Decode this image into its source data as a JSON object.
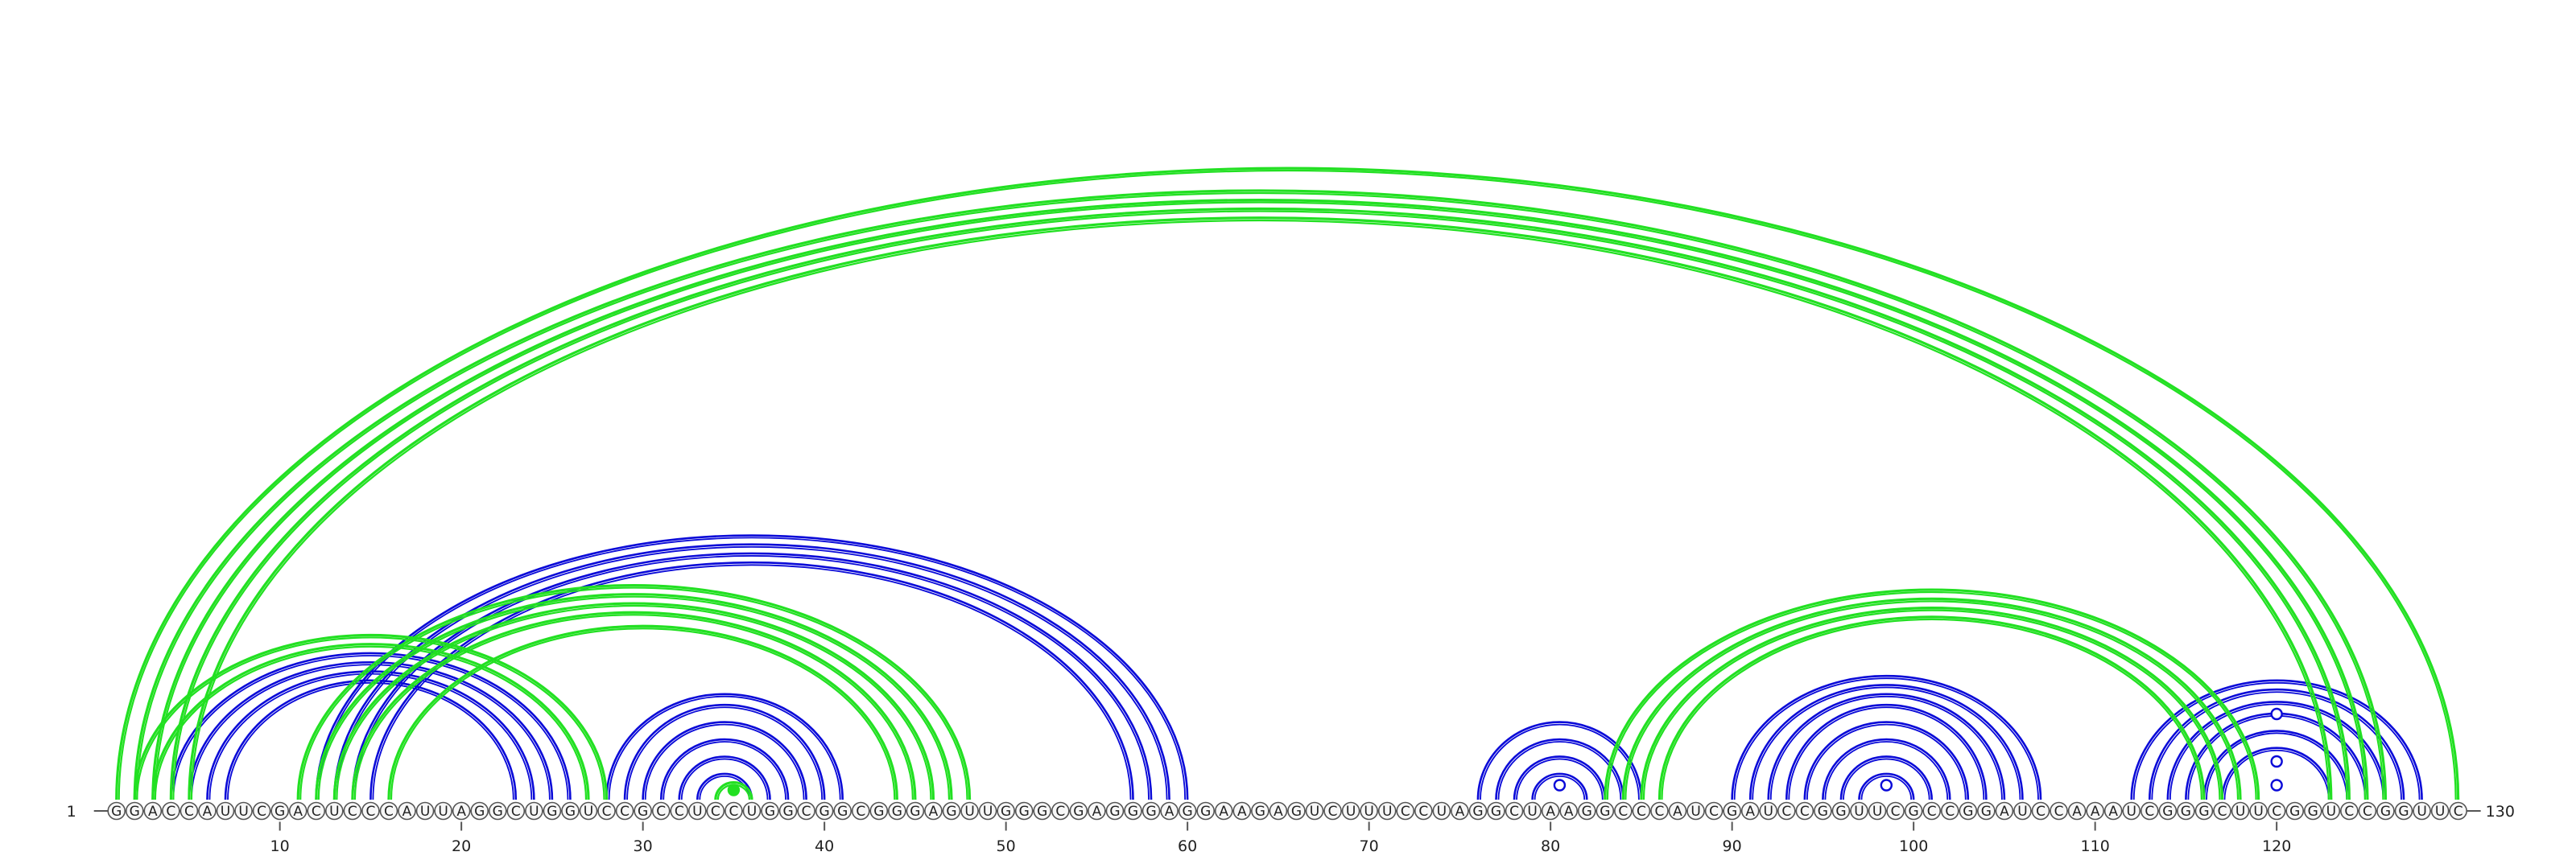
{
  "sequence": "GGACCAUUCGACUCCCAUUAGGCUGGUCCGCCUCCUGGCGGCGGGAGUUGGGCGAGGGAGGAAGAGUCUUUCCUAGGCUAAGGCCCAUCGAUCCGGUUCGCCGGAUCCAAAUCGGGCUUCGGUCCGGUUC",
  "start_label": "1",
  "end_label": "130",
  "axis_ticks": [
    {
      "pos": 10,
      "label": "10"
    },
    {
      "pos": 20,
      "label": "20"
    },
    {
      "pos": 30,
      "label": "30"
    },
    {
      "pos": 40,
      "label": "40"
    },
    {
      "pos": 50,
      "label": "50"
    },
    {
      "pos": 60,
      "label": "60"
    },
    {
      "pos": 70,
      "label": "70"
    },
    {
      "pos": 80,
      "label": "80"
    },
    {
      "pos": 90,
      "label": "90"
    },
    {
      "pos": 100,
      "label": "100"
    },
    {
      "pos": 110,
      "label": "110"
    },
    {
      "pos": 120,
      "label": "120"
    }
  ],
  "colors": {
    "blue": "#0a0ad8",
    "green": "#22e022",
    "backbone": "#555555"
  },
  "arc_groups": [
    {
      "name": "blue-helix-a",
      "color": "blue",
      "pairs": [
        [
          4,
          26
        ],
        [
          5,
          25
        ],
        [
          6,
          24
        ],
        [
          7,
          23
        ]
      ]
    },
    {
      "name": "blue-helix-b",
      "color": "blue",
      "pairs": [
        [
          12,
          60
        ],
        [
          13,
          59
        ],
        [
          14,
          58
        ],
        [
          15,
          57
        ]
      ]
    },
    {
      "name": "blue-hairpin-33",
      "color": "blue",
      "pairs": [
        [
          28,
          41
        ],
        [
          29,
          40
        ],
        [
          30,
          39
        ],
        [
          31,
          38
        ],
        [
          32,
          37
        ],
        [
          33,
          36
        ]
      ]
    },
    {
      "name": "blue-hairpin-80",
      "color": "blue",
      "pairs": [
        [
          76,
          85
        ],
        [
          77,
          84
        ],
        [
          78,
          83
        ],
        [
          79,
          82
        ]
      ]
    },
    {
      "name": "blue-hairpin-98",
      "color": "blue",
      "pairs": [
        [
          90,
          107
        ],
        [
          91,
          106
        ],
        [
          92,
          105
        ],
        [
          93,
          104
        ],
        [
          94,
          103
        ],
        [
          95,
          102
        ],
        [
          96,
          101
        ],
        [
          97,
          100
        ]
      ]
    },
    {
      "name": "blue-hairpin-120",
      "color": "blue",
      "pairs": [
        [
          112,
          128
        ],
        [
          113,
          127
        ],
        [
          114,
          126
        ],
        [
          115,
          125
        ],
        [
          116,
          124
        ],
        [
          117,
          123
        ]
      ]
    },
    {
      "name": "green-helix-left",
      "color": "green",
      "pairs": [
        [
          2,
          28
        ],
        [
          3,
          27
        ]
      ]
    },
    {
      "name": "green-helix-mid",
      "color": "green",
      "pairs": [
        [
          11,
          48
        ],
        [
          12,
          47
        ],
        [
          13,
          46
        ],
        [
          14,
          45
        ],
        [
          16,
          44
        ]
      ]
    },
    {
      "name": "green-loop-34",
      "color": "green",
      "pairs": [
        [
          34,
          36
        ]
      ]
    },
    {
      "name": "green-helix-right",
      "color": "green",
      "pairs": [
        [
          83,
          119
        ],
        [
          84,
          118
        ],
        [
          85,
          117
        ],
        [
          86,
          116
        ]
      ]
    },
    {
      "name": "green-long-range",
      "color": "green",
      "pairs": [
        [
          1,
          130
        ],
        [
          2,
          126
        ],
        [
          3,
          125
        ],
        [
          4,
          124
        ],
        [
          5,
          123
        ]
      ]
    }
  ],
  "markers": [
    {
      "pos": 35,
      "style": "filled",
      "color": "green",
      "level": 1
    },
    {
      "pos": 80.5,
      "style": "open",
      "color": "blue",
      "level": 1
    },
    {
      "pos": 98.5,
      "style": "open",
      "color": "blue",
      "level": 1
    },
    {
      "pos": 120,
      "style": "open",
      "color": "blue",
      "level": 1
    },
    {
      "pos": 120,
      "style": "open",
      "color": "blue",
      "level": 2
    },
    {
      "pos": 120,
      "style": "open",
      "color": "blue",
      "level": 4
    }
  ]
}
